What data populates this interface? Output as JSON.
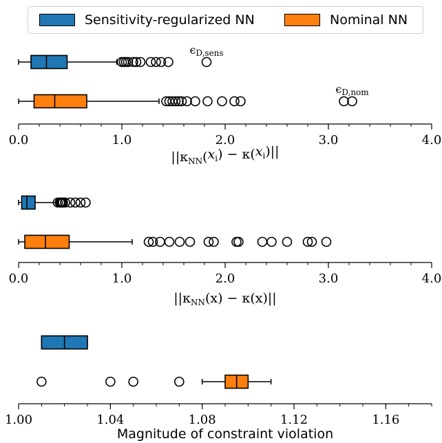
{
  "legend": [
    {
      "label": "Sensitivity-regularized NN",
      "color": "#1f77b4"
    },
    {
      "label": "Nominal NN",
      "color": "#ff7f0e"
    }
  ],
  "chart_data": [
    {
      "type": "box",
      "xlabel": "||κNN(xi) − κ(xi)||",
      "xlim": [
        0.0,
        4.0
      ],
      "xticks": [
        0.0,
        1.0,
        2.0,
        3.0,
        4.0
      ],
      "xtick_labels": [
        "0.0",
        "1.0",
        "2.0",
        "3.0",
        "4.0"
      ],
      "series": [
        {
          "name": "Sensitivity-regularized NN",
          "color": "#1f77b4",
          "whisker_low": 0.0,
          "q1": 0.12,
          "median": 0.27,
          "q3": 0.47,
          "whisker_high": 0.95,
          "outliers": [
            1.0,
            1.02,
            1.04,
            1.06,
            1.11,
            1.14,
            1.18,
            1.28,
            1.33,
            1.38,
            1.45,
            1.82
          ],
          "annotation": {
            "text": "ϵD,sens",
            "value": 1.82
          }
        },
        {
          "name": "Nominal NN",
          "color": "#ff7f0e",
          "whisker_low": 0.0,
          "q1": 0.15,
          "median": 0.35,
          "q3": 0.66,
          "whisker_high": 1.36,
          "outliers": [
            1.43,
            1.46,
            1.49,
            1.52,
            1.55,
            1.58,
            1.63,
            1.71,
            1.83,
            1.97,
            2.09,
            2.15,
            3.15,
            3.23
          ],
          "annotation": {
            "text": "ϵD,nom",
            "value": 3.23
          }
        }
      ]
    },
    {
      "type": "box",
      "xlabel": "||κNN(x) − κ(x)||",
      "xlim": [
        0.0,
        4.0
      ],
      "xticks": [
        0.0,
        1.0,
        2.0,
        3.0,
        4.0
      ],
      "xtick_labels": [
        "0.0",
        "1.0",
        "2.0",
        "3.0",
        "4.0"
      ],
      "series": [
        {
          "name": "Sensitivity-regularized NN",
          "color": "#1f77b4",
          "whisker_low": 0.0,
          "q1": 0.03,
          "median": 0.08,
          "q3": 0.16,
          "whisker_high": 0.36,
          "outliers": [
            0.38,
            0.4,
            0.41,
            0.42,
            0.43,
            0.45,
            0.5,
            0.55,
            0.6,
            0.65
          ]
        },
        {
          "name": "Nominal NN",
          "color": "#ff7f0e",
          "whisker_low": 0.0,
          "q1": 0.06,
          "median": 0.26,
          "q3": 0.49,
          "whisker_high": 1.1,
          "outliers": [
            1.26,
            1.3,
            1.37,
            1.46,
            1.56,
            1.66,
            1.84,
            1.89,
            2.11,
            2.13,
            2.36,
            2.45,
            2.6,
            2.8,
            2.84,
            2.98
          ]
        }
      ]
    },
    {
      "type": "box",
      "xlabel": "Magnitude of constraint violation",
      "xlim": [
        1.0,
        1.18
      ],
      "xticks": [
        1.0,
        1.04,
        1.08,
        1.12,
        1.16
      ],
      "xtick_labels": [
        "1.00",
        "1.04",
        "1.08",
        "1.12",
        "1.16"
      ],
      "minor_step": 0.01,
      "series": [
        {
          "name": "Sensitivity-regularized NN",
          "color": "#1f77b4",
          "whisker_low": 1.01,
          "q1": 1.01,
          "median": 1.02,
          "q3": 1.03,
          "whisker_high": 1.03,
          "outliers": []
        },
        {
          "name": "Nominal NN",
          "color": "#ff7f0e",
          "whisker_low": 1.08,
          "q1": 1.09,
          "median": 1.095,
          "q3": 1.1,
          "whisker_high": 1.11,
          "outliers": [
            1.01,
            1.04,
            1.05,
            1.07
          ]
        }
      ]
    }
  ]
}
